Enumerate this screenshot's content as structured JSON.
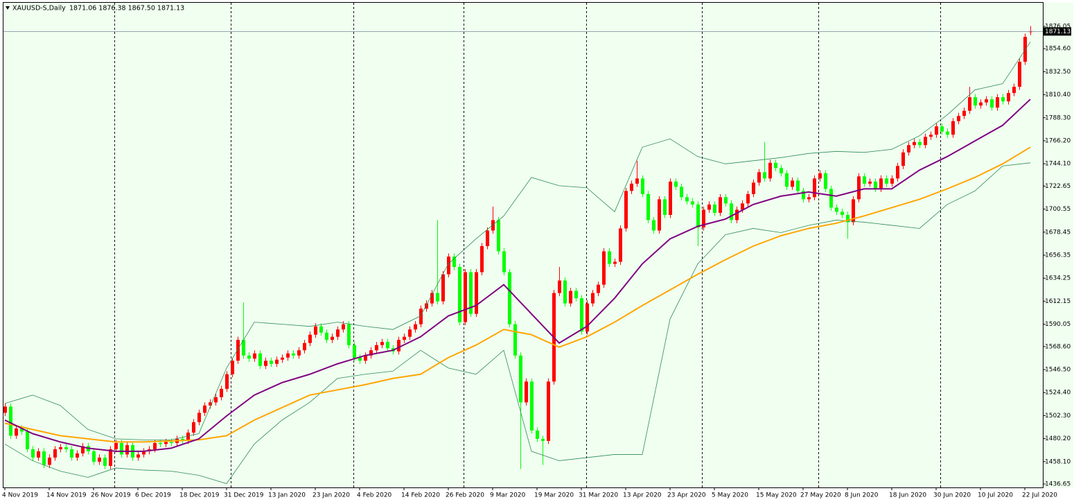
{
  "chart_data": {
    "type": "candlestick",
    "title": "XAUUSD-S,Daily",
    "header_values": "1871.06 1876.38 1867.50 1871.13",
    "background": "#f0fff0",
    "up_color": "#ff0000",
    "down_color": "#00ff00",
    "categories": [
      "4 Nov 2019",
      null,
      null,
      null,
      null,
      null,
      null,
      null,
      "14 Nov 2019",
      null,
      null,
      null,
      null,
      null,
      null,
      null,
      "26 Nov 2019",
      null,
      null,
      null,
      null,
      null,
      null,
      null,
      "6 Dec 2019",
      null,
      null,
      null,
      null,
      null,
      null,
      null,
      "18 Dec 2019",
      null,
      null,
      null,
      null,
      null,
      null,
      null,
      "31 Dec 2019",
      null,
      null,
      null,
      null,
      null,
      null,
      null,
      "13 Jan 2020",
      null,
      null,
      null,
      null,
      null,
      null,
      null,
      "23 Jan 2020",
      null,
      null,
      null,
      null,
      null,
      null,
      null,
      "4 Feb 2020",
      null,
      null,
      null,
      null,
      null,
      null,
      null,
      "14 Feb 2020",
      null,
      null,
      null,
      null,
      null,
      null,
      null,
      "26 Feb 2020",
      null,
      null,
      null,
      null,
      null,
      null,
      null,
      "9 Mar 2020",
      null,
      null,
      null,
      null,
      null,
      null,
      null,
      "19 Mar 2020",
      null,
      null,
      null,
      null,
      null,
      null,
      null,
      "31 Mar 2020",
      null,
      null,
      null,
      null,
      null,
      null,
      null,
      "13 Apr 2020",
      null,
      null,
      null,
      null,
      null,
      null,
      null,
      "23 Apr 2020",
      null,
      null,
      null,
      null,
      null,
      null,
      null,
      "5 May 2020",
      null,
      null,
      null,
      null,
      null,
      null,
      null,
      "15 May 2020",
      null,
      null,
      null,
      null,
      null,
      null,
      null,
      "27 May 2020",
      null,
      null,
      null,
      null,
      null,
      null,
      null,
      "8 Jun 2020",
      null,
      null,
      null,
      null,
      null,
      null,
      null,
      "18 Jun 2020",
      null,
      null,
      null,
      null,
      null,
      null,
      null,
      "30 Jun 2020",
      null,
      null,
      null,
      null,
      null,
      null,
      null,
      "10 Jul 2020",
      null,
      null,
      null,
      null,
      null,
      null,
      null,
      "22 Jul 2020",
      null
    ],
    "open": [
      1505,
      1511,
      1483,
      1490,
      1487,
      1470,
      1462,
      1468,
      1455,
      1462,
      1470,
      1472,
      1470,
      1462,
      1466,
      1473,
      1468,
      1458,
      1462,
      1454,
      1470,
      1476,
      1465,
      1474,
      1462,
      1465,
      1468,
      1470,
      1476,
      1475,
      1477,
      1476,
      1480,
      1478,
      1486,
      1496,
      1505,
      1512,
      1515,
      1520,
      1528,
      1542,
      1555,
      1575,
      1560,
      1557,
      1562,
      1550,
      1555,
      1552,
      1556,
      1558,
      1562,
      1560,
      1565,
      1572,
      1580,
      1588,
      1582,
      1575,
      1578,
      1585,
      1590,
      1570,
      1558,
      1555,
      1560,
      1565,
      1570,
      1573,
      1567,
      1564,
      1575,
      1578,
      1585,
      1590,
      1605,
      1610,
      1620,
      1612,
      1638,
      1655,
      1645,
      1592,
      1640,
      1600,
      1640,
      1665,
      1680,
      1690,
      1660,
      1640,
      1590,
      1560,
      1515,
      1535,
      1488,
      1480,
      1478,
      1535,
      1620,
      1632,
      1610,
      1622,
      1615,
      1583,
      1610,
      1620,
      1628,
      1660,
      1648,
      1650,
      1682,
      1718,
      1725,
      1730,
      1715,
      1690,
      1680,
      1710,
      1695,
      1727,
      1722,
      1712,
      1708,
      1705,
      1683,
      1700,
      1705,
      1697,
      1712,
      1706,
      1690,
      1700,
      1706,
      1715,
      1726,
      1736,
      1730,
      1745,
      1740,
      1735,
      1722,
      1728,
      1718,
      1710,
      1712,
      1730,
      1735,
      1720,
      1702,
      1698,
      1695,
      1688,
      1710,
      1732,
      1725,
      1727,
      1720,
      1730,
      1725,
      1730,
      1742,
      1755,
      1762,
      1765,
      1762,
      1770,
      1772,
      1780,
      1775,
      1772,
      1785,
      1790,
      1795,
      1808,
      1800,
      1803,
      1806,
      1798,
      1808,
      1804,
      1812,
      1818,
      1842,
      1871.06
    ],
    "high": [
      1514,
      1514,
      1493,
      1493,
      1490,
      1473,
      1471,
      1471,
      1465,
      1473,
      1475,
      1475,
      1473,
      1469,
      1476,
      1476,
      1471,
      1465,
      1465,
      1473,
      1479,
      1479,
      1477,
      1477,
      1468,
      1471,
      1473,
      1479,
      1479,
      1480,
      1480,
      1483,
      1483,
      1489,
      1499,
      1508,
      1515,
      1518,
      1523,
      1531,
      1545,
      1558,
      1578,
      1611,
      1563,
      1565,
      1565,
      1558,
      1558,
      1559,
      1561,
      1565,
      1565,
      1568,
      1575,
      1583,
      1591,
      1591,
      1585,
      1581,
      1588,
      1593,
      1593,
      1573,
      1561,
      1563,
      1568,
      1573,
      1576,
      1576,
      1570,
      1578,
      1581,
      1588,
      1593,
      1608,
      1613,
      1623,
      1690,
      1641,
      1658,
      1658,
      1648,
      1643,
      1643,
      1643,
      1668,
      1683,
      1703,
      1693,
      1663,
      1643,
      1593,
      1563,
      1538,
      1538,
      1491,
      1483,
      1538,
      1623,
      1645,
      1635,
      1625,
      1625,
      1618,
      1613,
      1623,
      1631,
      1663,
      1663,
      1653,
      1685,
      1721,
      1728,
      1747,
      1733,
      1718,
      1693,
      1713,
      1713,
      1730,
      1730,
      1725,
      1715,
      1711,
      1708,
      1703,
      1708,
      1708,
      1715,
      1715,
      1709,
      1703,
      1709,
      1718,
      1729,
      1739,
      1765,
      1748,
      1748,
      1743,
      1738,
      1731,
      1731,
      1721,
      1715,
      1733,
      1738,
      1738,
      1723,
      1705,
      1701,
      1698,
      1713,
      1735,
      1735,
      1730,
      1730,
      1733,
      1733,
      1733,
      1745,
      1758,
      1765,
      1768,
      1768,
      1773,
      1775,
      1783,
      1783,
      1778,
      1788,
      1793,
      1798,
      1818,
      1811,
      1806,
      1809,
      1809,
      1811,
      1811,
      1815,
      1821,
      1845,
      1869,
      1876.38
    ],
    "low": [
      1502,
      1480,
      1480,
      1484,
      1467,
      1459,
      1459,
      1452,
      1452,
      1459,
      1467,
      1467,
      1459,
      1459,
      1463,
      1465,
      1455,
      1455,
      1451,
      1451,
      1467,
      1462,
      1462,
      1459,
      1459,
      1462,
      1465,
      1467,
      1472,
      1472,
      1473,
      1473,
      1475,
      1475,
      1483,
      1493,
      1502,
      1509,
      1512,
      1517,
      1525,
      1539,
      1552,
      1557,
      1554,
      1554,
      1547,
      1547,
      1549,
      1549,
      1553,
      1555,
      1557,
      1557,
      1562,
      1569,
      1577,
      1579,
      1572,
      1572,
      1575,
      1582,
      1567,
      1555,
      1552,
      1552,
      1557,
      1562,
      1567,
      1564,
      1561,
      1561,
      1572,
      1575,
      1582,
      1587,
      1602,
      1607,
      1609,
      1609,
      1635,
      1642,
      1589,
      1589,
      1597,
      1597,
      1637,
      1662,
      1677,
      1657,
      1637,
      1587,
      1557,
      1451,
      1512,
      1485,
      1477,
      1455,
      1475,
      1532,
      1617,
      1607,
      1607,
      1612,
      1580,
      1580,
      1607,
      1617,
      1625,
      1645,
      1645,
      1647,
      1679,
      1715,
      1722,
      1712,
      1687,
      1677,
      1677,
      1692,
      1692,
      1719,
      1709,
      1705,
      1702,
      1665,
      1680,
      1697,
      1694,
      1694,
      1703,
      1687,
      1687,
      1697,
      1703,
      1712,
      1723,
      1727,
      1727,
      1737,
      1732,
      1719,
      1719,
      1715,
      1707,
      1707,
      1709,
      1727,
      1717,
      1699,
      1695,
      1692,
      1672,
      1685,
      1707,
      1722,
      1722,
      1717,
      1717,
      1722,
      1722,
      1727,
      1739,
      1752,
      1759,
      1759,
      1759,
      1767,
      1769,
      1772,
      1769,
      1769,
      1782,
      1787,
      1792,
      1797,
      1797,
      1800,
      1795,
      1795,
      1801,
      1801,
      1809,
      1815,
      1839,
      1867.5
    ],
    "close": [
      1511,
      1483,
      1490,
      1487,
      1470,
      1462,
      1468,
      1455,
      1462,
      1470,
      1472,
      1470,
      1462,
      1466,
      1473,
      1468,
      1458,
      1462,
      1454,
      1470,
      1476,
      1465,
      1474,
      1462,
      1465,
      1468,
      1470,
      1476,
      1475,
      1477,
      1476,
      1480,
      1478,
      1486,
      1496,
      1505,
      1512,
      1515,
      1520,
      1528,
      1542,
      1555,
      1575,
      1560,
      1557,
      1562,
      1550,
      1555,
      1552,
      1556,
      1558,
      1562,
      1560,
      1565,
      1572,
      1580,
      1588,
      1582,
      1575,
      1578,
      1585,
      1590,
      1570,
      1558,
      1555,
      1560,
      1565,
      1570,
      1573,
      1567,
      1564,
      1575,
      1578,
      1585,
      1590,
      1605,
      1610,
      1620,
      1612,
      1638,
      1655,
      1645,
      1592,
      1640,
      1600,
      1640,
      1665,
      1680,
      1690,
      1660,
      1640,
      1590,
      1560,
      1515,
      1535,
      1488,
      1480,
      1478,
      1535,
      1620,
      1632,
      1610,
      1622,
      1615,
      1583,
      1610,
      1620,
      1628,
      1660,
      1648,
      1650,
      1682,
      1718,
      1725,
      1730,
      1715,
      1690,
      1680,
      1710,
      1695,
      1727,
      1722,
      1712,
      1708,
      1705,
      1683,
      1700,
      1705,
      1697,
      1712,
      1706,
      1690,
      1700,
      1706,
      1715,
      1726,
      1736,
      1730,
      1745,
      1740,
      1735,
      1722,
      1728,
      1718,
      1710,
      1712,
      1730,
      1735,
      1720,
      1702,
      1698,
      1695,
      1688,
      1710,
      1732,
      1725,
      1727,
      1720,
      1730,
      1725,
      1730,
      1742,
      1755,
      1762,
      1765,
      1762,
      1770,
      1772,
      1780,
      1775,
      1772,
      1785,
      1790,
      1795,
      1808,
      1800,
      1803,
      1806,
      1798,
      1808,
      1804,
      1812,
      1818,
      1842,
      1866,
      1871.13
    ],
    "line_x": [
      0,
      5,
      10,
      15,
      20,
      25,
      30,
      35,
      40,
      45,
      50,
      55,
      60,
      65,
      70,
      75,
      80,
      85,
      90,
      95,
      100,
      105,
      110,
      115,
      120,
      125,
      130,
      135,
      140,
      145,
      150,
      155,
      160,
      165,
      170,
      175,
      180,
      185
    ],
    "lines": [
      {
        "color": "#2e8b57",
        "width": 0.8,
        "values": [
          1514,
          1522,
          1512,
          1489,
          1480,
          1479,
          1479,
          1485,
          1548,
          1592,
          1590,
          1588,
          1592,
          1588,
          1585,
          1598,
          1648,
          1672,
          1694,
          1731,
          1723,
          1721,
          1698,
          1760,
          1768,
          1751,
          1744,
          1747,
          1750,
          1754,
          1756,
          1755,
          1758,
          1771,
          1791,
          1815,
          1821,
          1861
        ]
      },
      {
        "color": "#2e8b57",
        "width": 0.8,
        "values": [
          1475,
          1459,
          1449,
          1443,
          1452,
          1450,
          1449,
          1445,
          1437,
          1475,
          1498,
          1515,
          1538,
          1542,
          1545,
          1565,
          1548,
          1542,
          1565,
          1468,
          1459,
          1462,
          1465,
          1465,
          1595,
          1648,
          1676,
          1682,
          1678,
          1685,
          1690,
          1688,
          1685,
          1682,
          1705,
          1718,
          1742,
          1745
        ]
      },
      {
        "color": "#ffa500",
        "width": 2,
        "values": [
          1495,
          1489,
          1483,
          1480,
          1477,
          1477,
          1478,
          1479,
          1483,
          1498,
          1510,
          1522,
          1527,
          1532,
          1538,
          1542,
          1558,
          1570,
          1585,
          1580,
          1568,
          1578,
          1592,
          1608,
          1623,
          1638,
          1652,
          1665,
          1675,
          1682,
          1687,
          1694,
          1702,
          1710,
          1720,
          1731,
          1744,
          1760
        ]
      },
      {
        "color": "#800080",
        "width": 2,
        "values": [
          1498,
          1485,
          1477,
          1471,
          1468,
          1468,
          1471,
          1480,
          1502,
          1522,
          1534,
          1542,
          1552,
          1560,
          1565,
          1578,
          1598,
          1608,
          1628,
          1600,
          1572,
          1588,
          1615,
          1648,
          1672,
          1684,
          1691,
          1705,
          1713,
          1717,
          1713,
          1720,
          1720,
          1738,
          1751,
          1766,
          1781,
          1806
        ]
      }
    ],
    "last_price": 1871.13,
    "ylim": [
      1432,
      1898
    ],
    "yticks": [
      1876.05,
      {
        "value": 1854.6,
        "label": "1854.60"
      },
      {
        "value": 1832.5,
        "label": "1832.50"
      },
      {
        "value": 1810.4,
        "label": "1810.40"
      },
      {
        "value": 1788.3,
        "label": "1788.30"
      },
      {
        "value": 1766.2,
        "label": "1766.20"
      },
      {
        "value": 1744.1,
        "label": "1744.10"
      },
      1722.65,
      1700.55,
      1678.45,
      1656.35,
      1634.25,
      1612.15,
      1590.05,
      {
        "value": 1568.6,
        "label": "1568.60"
      },
      {
        "value": 1546.5,
        "label": "1546.50"
      },
      {
        "value": 1524.4,
        "label": "1524.40"
      },
      {
        "value": 1502.3,
        "label": "1502.30"
      },
      {
        "value": 1480.2,
        "label": "1480.20"
      },
      {
        "value": 1458.1,
        "label": "1458.10"
      },
      1436.65
    ]
  }
}
